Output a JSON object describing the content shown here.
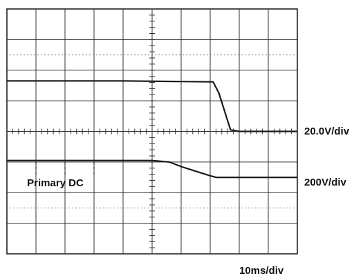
{
  "chart_data": {
    "type": "line",
    "title": "",
    "xlabel": "",
    "ylabel": "",
    "grid": true,
    "xlim": [
      0,
      100
    ],
    "ylim": [
      -4,
      4
    ],
    "x_units": "ms",
    "y_units": "div",
    "annotations": {
      "time_scale": "10ms/div",
      "upper_trace_scale": "20.0V/div",
      "lower_trace_scale": "200V/div"
    },
    "series": [
      {
        "name": "",
        "color": "#1a1a1a",
        "x": [
          0,
          20,
          40,
          60,
          71,
          73,
          77,
          80,
          100
        ],
        "y": [
          1.65,
          1.65,
          1.65,
          1.63,
          1.62,
          1.25,
          0.05,
          0.0,
          0.0
        ]
      },
      {
        "name": "Primary DC",
        "color": "#1a1a1a",
        "x": [
          0,
          10,
          20,
          30,
          40,
          50,
          56,
          60,
          65,
          70,
          72,
          80,
          100
        ],
        "y": [
          -0.95,
          -0.95,
          -0.95,
          -0.95,
          -0.95,
          -0.95,
          -1.0,
          -1.15,
          -1.3,
          -1.45,
          -1.5,
          -1.5,
          -1.5
        ]
      }
    ]
  }
}
